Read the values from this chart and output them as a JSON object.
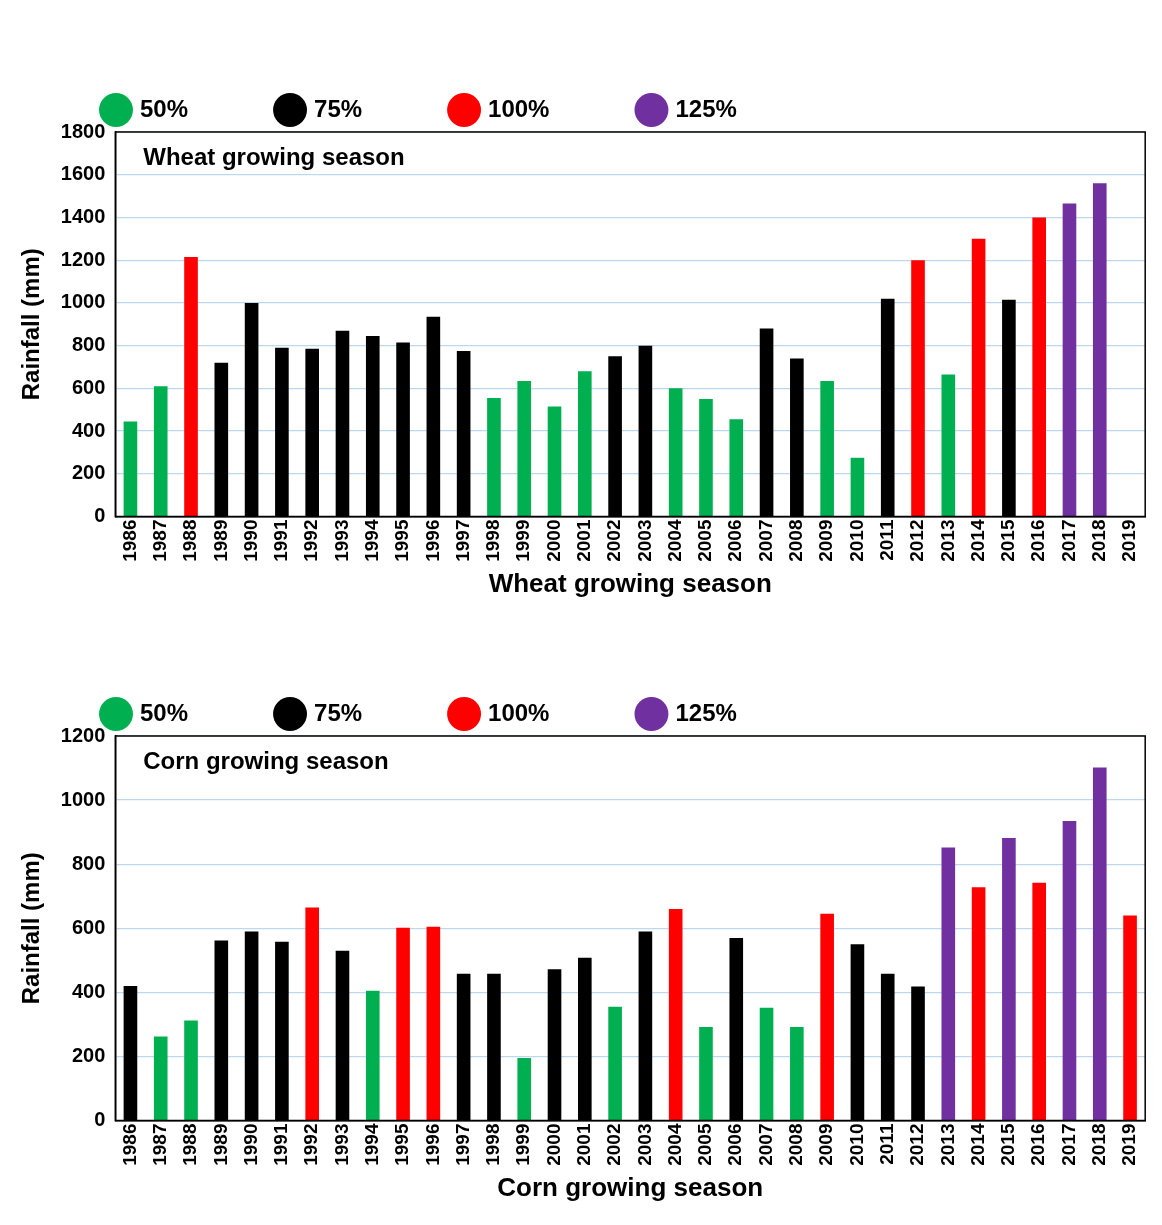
{
  "chart_data": [
    {
      "type": "bar",
      "title": "Wheat growing season",
      "xlabel": "Wheat growing season",
      "ylabel": "Rainfall (mm)",
      "categories": [
        "1986",
        "1987",
        "1988",
        "1989",
        "1990",
        "1991",
        "1992",
        "1993",
        "1994",
        "1995",
        "1996",
        "1997",
        "1998",
        "1999",
        "2000",
        "2001",
        "2002",
        "2003",
        "2004",
        "2005",
        "2006",
        "2007",
        "2008",
        "2009",
        "2010",
        "2011",
        "2012",
        "2013",
        "2014",
        "2015",
        "2016",
        "2017",
        "2018",
        "2019"
      ],
      "series": [
        {
          "name": "50%",
          "color": "#00b050",
          "values": [
            445,
            610,
            null,
            null,
            null,
            null,
            null,
            null,
            null,
            null,
            null,
            null,
            555,
            635,
            515,
            680,
            null,
            null,
            600,
            550,
            455,
            null,
            null,
            635,
            275,
            null,
            null,
            665,
            null,
            null,
            null,
            null,
            null,
            null
          ]
        },
        {
          "name": "75%",
          "color": "#000000",
          "values": [
            null,
            null,
            null,
            720,
            1000,
            790,
            785,
            870,
            845,
            815,
            935,
            775,
            null,
            null,
            null,
            null,
            750,
            800,
            null,
            null,
            null,
            880,
            740,
            null,
            null,
            1020,
            null,
            null,
            null,
            1015,
            null,
            null,
            null,
            null
          ]
        },
        {
          "name": "100%",
          "color": "#ff0000",
          "values": [
            null,
            null,
            1215,
            null,
            null,
            null,
            null,
            null,
            null,
            null,
            null,
            null,
            null,
            null,
            null,
            null,
            null,
            null,
            null,
            null,
            null,
            null,
            null,
            null,
            null,
            null,
            1200,
            null,
            1300,
            null,
            1400,
            null,
            null,
            null
          ]
        },
        {
          "name": "125%",
          "color": "#7030a0",
          "values": [
            null,
            null,
            null,
            null,
            null,
            null,
            null,
            null,
            null,
            null,
            null,
            null,
            null,
            null,
            null,
            null,
            null,
            null,
            null,
            null,
            null,
            null,
            null,
            null,
            null,
            null,
            null,
            null,
            null,
            null,
            null,
            1465,
            1560,
            null
          ]
        }
      ],
      "ylim": [
        0,
        1800
      ],
      "yticks": [
        0,
        200,
        400,
        600,
        800,
        1000,
        1200,
        1400,
        1600,
        1800
      ],
      "grid": "y",
      "legend": "top left"
    },
    {
      "type": "bar",
      "title": "Corn growing season",
      "xlabel": "Corn growing season",
      "ylabel": "Rainfall (mm)",
      "categories": [
        "1986",
        "1987",
        "1988",
        "1989",
        "1990",
        "1991",
        "1992",
        "1993",
        "1994",
        "1995",
        "1996",
        "1997",
        "1998",
        "1999",
        "2000",
        "2001",
        "2002",
        "2003",
        "2004",
        "2005",
        "2006",
        "2007",
        "2008",
        "2009",
        "2010",
        "2011",
        "2012",
        "2013",
        "2014",
        "2015",
        "2016",
        "2017",
        "2018",
        "2019"
      ],
      "series": [
        {
          "name": "50%",
          "color": "#00b050",
          "values": [
            null,
            262,
            312,
            null,
            null,
            null,
            null,
            null,
            405,
            null,
            null,
            null,
            null,
            195,
            null,
            null,
            355,
            null,
            null,
            292,
            null,
            352,
            292,
            null,
            null,
            null,
            null,
            null,
            null,
            null,
            null,
            null,
            null,
            null
          ]
        },
        {
          "name": "75%",
          "color": "#000000",
          "values": [
            420,
            null,
            null,
            562,
            590,
            558,
            null,
            530,
            null,
            null,
            null,
            458,
            458,
            null,
            472,
            508,
            null,
            590,
            null,
            null,
            570,
            null,
            null,
            null,
            550,
            458,
            418,
            null,
            null,
            null,
            null,
            null,
            null,
            null
          ]
        },
        {
          "name": "100%",
          "color": "#ff0000",
          "values": [
            null,
            null,
            null,
            null,
            null,
            null,
            665,
            null,
            null,
            602,
            605,
            null,
            null,
            null,
            null,
            null,
            null,
            null,
            660,
            null,
            null,
            null,
            null,
            645,
            null,
            null,
            null,
            null,
            728,
            null,
            742,
            null,
            null,
            640
          ]
        },
        {
          "name": "125%",
          "color": "#7030a0",
          "values": [
            null,
            null,
            null,
            null,
            null,
            null,
            null,
            null,
            null,
            null,
            null,
            null,
            null,
            null,
            null,
            null,
            null,
            null,
            null,
            null,
            null,
            null,
            null,
            null,
            null,
            null,
            null,
            852,
            null,
            882,
            null,
            935,
            1102,
            null
          ]
        }
      ],
      "ylim": [
        0,
        1200
      ],
      "yticks": [
        0,
        200,
        400,
        600,
        800,
        1000,
        1200
      ],
      "grid": "y",
      "legend": "top left"
    }
  ]
}
